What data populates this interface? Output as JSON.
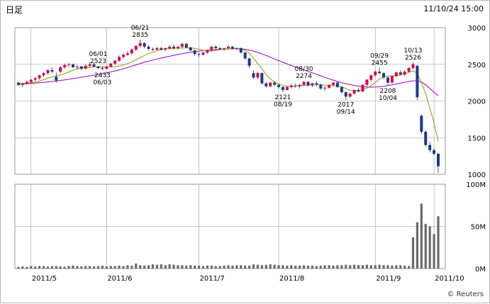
{
  "header": {
    "title": "日足",
    "timestamp": "11/10/24 15:00",
    "copyright": "© Reuters"
  },
  "colors": {
    "up": "#e0004a",
    "down": "#1a3a8a",
    "ma_short": "#8a9a10",
    "ma_long": "#a000c0",
    "volume": "#6a6a6a",
    "grid": "#9a9a9a"
  },
  "chart_data": [
    {
      "type": "candlestick",
      "title": "",
      "y_ticks": [
        "3000",
        "2500",
        "2000",
        "1500",
        "1000"
      ],
      "ylim": [
        1000,
        3000
      ],
      "x_ticks": [
        "2011/5",
        "2011/6",
        "2011/7",
        "2011/8",
        "2011/9",
        "2011/10"
      ],
      "annotations": [
        {
          "date": "06/01",
          "value": "2523"
        },
        {
          "date": "06/03",
          "value": "2433"
        },
        {
          "date": "06/21",
          "value": "2835"
        },
        {
          "date": "08/19",
          "value": "2121"
        },
        {
          "date": "08/30",
          "value": "2274"
        },
        {
          "date": "09/14",
          "value": "2017"
        },
        {
          "date": "09/29",
          "value": "2455"
        },
        {
          "date": "10/04",
          "value": "2208"
        },
        {
          "date": "10/13",
          "value": "2526"
        }
      ],
      "series": [
        {
          "kind": "ohlc",
          "values": [
            [
              2250,
              2260,
              2200,
              2220
            ],
            [
              2220,
              2250,
              2190,
              2240
            ],
            [
              2240,
              2280,
              2220,
              2260
            ],
            [
              2260,
              2300,
              2240,
              2290
            ],
            [
              2290,
              2330,
              2270,
              2310
            ],
            [
              2310,
              2360,
              2290,
              2350
            ],
            [
              2350,
              2400,
              2330,
              2380
            ],
            [
              2380,
              2430,
              2360,
              2420
            ],
            [
              2420,
              2460,
              2380,
              2400
            ],
            [
              2330,
              2390,
              2250,
              2280
            ],
            [
              2400,
              2480,
              2380,
              2460
            ],
            [
              2460,
              2510,
              2440,
              2490
            ],
            [
              2490,
              2520,
              2460,
              2500
            ],
            [
              2500,
              2510,
              2450,
              2460
            ],
            [
              2460,
              2490,
              2430,
              2470
            ],
            [
              2470,
              2480,
              2420,
              2440
            ],
            [
              2440,
              2500,
              2430,
              2480
            ],
            [
              2480,
              2530,
              2450,
              2500
            ],
            [
              2500,
              2523,
              2460,
              2470
            ],
            [
              2470,
              2480,
              2433,
              2450
            ],
            [
              2450,
              2470,
              2420,
              2440
            ],
            [
              2440,
              2480,
              2430,
              2470
            ],
            [
              2470,
              2520,
              2460,
              2510
            ],
            [
              2510,
              2560,
              2490,
              2550
            ],
            [
              2550,
              2620,
              2530,
              2600
            ],
            [
              2600,
              2650,
              2580,
              2630
            ],
            [
              2630,
              2680,
              2610,
              2650
            ],
            [
              2650,
              2720,
              2630,
              2700
            ],
            [
              2700,
              2760,
              2680,
              2750
            ],
            [
              2750,
              2835,
              2730,
              2790
            ],
            [
              2790,
              2800,
              2720,
              2740
            ],
            [
              2740,
              2760,
              2690,
              2710
            ],
            [
              2710,
              2730,
              2680,
              2700
            ],
            [
              2700,
              2740,
              2690,
              2720
            ],
            [
              2720,
              2740,
              2690,
              2700
            ],
            [
              2700,
              2730,
              2680,
              2720
            ],
            [
              2720,
              2760,
              2700,
              2740
            ],
            [
              2740,
              2770,
              2700,
              2720
            ],
            [
              2720,
              2750,
              2700,
              2740
            ],
            [
              2740,
              2790,
              2720,
              2780
            ],
            [
              2780,
              2790,
              2720,
              2730
            ],
            [
              2730,
              2740,
              2680,
              2690
            ],
            [
              2690,
              2700,
              2620,
              2640
            ],
            [
              2640,
              2660,
              2600,
              2630
            ],
            [
              2630,
              2670,
              2620,
              2660
            ],
            [
              2660,
              2700,
              2640,
              2690
            ],
            [
              2690,
              2750,
              2680,
              2740
            ],
            [
              2740,
              2760,
              2700,
              2720
            ],
            [
              2720,
              2740,
              2690,
              2710
            ],
            [
              2710,
              2730,
              2680,
              2720
            ],
            [
              2720,
              2760,
              2700,
              2740
            ],
            [
              2740,
              2750,
              2700,
              2710
            ],
            [
              2710,
              2730,
              2690,
              2720
            ],
            [
              2720,
              2730,
              2650,
              2660
            ],
            [
              2660,
              2670,
              2560,
              2580
            ],
            [
              2580,
              2590,
              2450,
              2480
            ],
            [
              2380,
              2420,
              2300,
              2320
            ],
            [
              2320,
              2400,
              2300,
              2380
            ],
            [
              2380,
              2390,
              2220,
              2240
            ],
            [
              2240,
              2260,
              2180,
              2200
            ],
            [
              2200,
              2260,
              2190,
              2250
            ],
            [
              2250,
              2270,
              2200,
              2220
            ],
            [
              2220,
              2240,
              2170,
              2190
            ],
            [
              2190,
              2200,
              2121,
              2150
            ],
            [
              2150,
              2200,
              2140,
              2190
            ],
            [
              2190,
              2230,
              2170,
              2210
            ],
            [
              2210,
              2240,
              2180,
              2200
            ],
            [
              2200,
              2230,
              2170,
              2220
            ],
            [
              2220,
              2274,
              2200,
              2260
            ],
            [
              2260,
              2270,
              2200,
              2210
            ],
            [
              2210,
              2250,
              2190,
              2240
            ],
            [
              2240,
              2270,
              2200,
              2220
            ],
            [
              2220,
              2240,
              2150,
              2170
            ],
            [
              2170,
              2200,
              2140,
              2180
            ],
            [
              2180,
              2230,
              2170,
              2220
            ],
            [
              2220,
              2260,
              2200,
              2250
            ],
            [
              2250,
              2260,
              2180,
              2190
            ],
            [
              2190,
              2200,
              2100,
              2120
            ],
            [
              2120,
              2130,
              2017,
              2060
            ],
            [
              2060,
              2110,
              2040,
              2100
            ],
            [
              2100,
              2160,
              2090,
              2150
            ],
            [
              2150,
              2180,
              2120,
              2130
            ],
            [
              2130,
              2230,
              2120,
              2220
            ],
            [
              2220,
              2300,
              2200,
              2290
            ],
            [
              2290,
              2360,
              2270,
              2350
            ],
            [
              2350,
              2420,
              2330,
              2400
            ],
            [
              2400,
              2455,
              2360,
              2380
            ],
            [
              2380,
              2390,
              2300,
              2320
            ],
            [
              2320,
              2330,
              2208,
              2250
            ],
            [
              2250,
              2350,
              2240,
              2340
            ],
            [
              2340,
              2400,
              2320,
              2390
            ],
            [
              2390,
              2420,
              2350,
              2360
            ],
            [
              2360,
              2420,
              2340,
              2400
            ],
            [
              2400,
              2460,
              2390,
              2450
            ],
            [
              2450,
              2526,
              2430,
              2500
            ],
            [
              2480,
              2490,
              2010,
              2050
            ],
            [
              1800,
              1820,
              1550,
              1580
            ],
            [
              1580,
              1600,
              1380,
              1400
            ],
            [
              1400,
              1440,
              1300,
              1330
            ],
            [
              1330,
              1350,
              1260,
              1280
            ],
            [
              1280,
              1290,
              1020,
              1110
            ]
          ]
        },
        {
          "name": "",
          "kind": "ma_short",
          "values": [
            2240,
            2238,
            2242,
            2248,
            2258,
            2270,
            2290,
            2310,
            2330,
            2340,
            2355,
            2375,
            2395,
            2420,
            2440,
            2450,
            2455,
            2460,
            2465,
            2465,
            2462,
            2460,
            2462,
            2468,
            2478,
            2492,
            2510,
            2530,
            2560,
            2590,
            2620,
            2645,
            2665,
            2685,
            2700,
            2710,
            2715,
            2718,
            2720,
            2722,
            2725,
            2724,
            2718,
            2705,
            2690,
            2680,
            2680,
            2690,
            2700,
            2705,
            2710,
            2715,
            2718,
            2712,
            2690,
            2650,
            2580,
            2510,
            2440,
            2360,
            2300,
            2260,
            2230,
            2210,
            2200,
            2200,
            2205,
            2208,
            2212,
            2220,
            2225,
            2228,
            2222,
            2215,
            2210,
            2208,
            2205,
            2195,
            2170,
            2145,
            2135,
            2140,
            2155,
            2175,
            2210,
            2250,
            2300,
            2330,
            2340,
            2340,
            2345,
            2355,
            2370,
            2390,
            2410,
            2380,
            2250,
            2100,
            1900,
            1700,
            1450
          ]
        },
        {
          "name": "",
          "kind": "ma_long",
          "values": [
            2230,
            2232,
            2236,
            2240,
            2244,
            2249,
            2254,
            2260,
            2266,
            2272,
            2280,
            2288,
            2296,
            2305,
            2314,
            2324,
            2333,
            2342,
            2352,
            2362,
            2372,
            2384,
            2396,
            2410,
            2424,
            2440,
            2456,
            2474,
            2492,
            2510,
            2528,
            2544,
            2558,
            2572,
            2585,
            2598,
            2610,
            2622,
            2634,
            2645,
            2655,
            2664,
            2672,
            2680,
            2686,
            2692,
            2696,
            2700,
            2704,
            2707,
            2710,
            2712,
            2712,
            2710,
            2705,
            2695,
            2680,
            2662,
            2642,
            2620,
            2597,
            2573,
            2550,
            2528,
            2505,
            2484,
            2464,
            2444,
            2424,
            2404,
            2384,
            2364,
            2344,
            2322,
            2302,
            2284,
            2266,
            2250,
            2236,
            2224,
            2212,
            2202,
            2195,
            2190,
            2188,
            2190,
            2194,
            2200,
            2210,
            2220,
            2232,
            2244,
            2256,
            2266,
            2274,
            2276,
            2260,
            2220,
            2170,
            2120,
            2070
          ]
        }
      ]
    },
    {
      "type": "bar",
      "title": "",
      "y_ticks": [
        "100M",
        "50M",
        "0M"
      ],
      "ylim": [
        0,
        100
      ],
      "series": [
        {
          "name": "",
          "values": [
            2,
            2.5,
            2,
            3,
            2.5,
            3,
            3,
            2.5,
            3,
            3,
            2.5,
            2,
            3,
            3.5,
            3,
            2.5,
            3,
            3,
            2.5,
            3,
            3.5,
            2.5,
            3,
            3,
            3.5,
            3,
            4,
            3.5,
            6,
            4,
            3.5,
            4,
            5,
            4.5,
            5,
            4,
            5,
            4.5,
            4,
            4,
            3.5,
            4,
            3.5,
            3.5,
            3,
            3.5,
            3.5,
            3,
            3,
            3.5,
            4,
            3.5,
            4,
            4,
            3.5,
            3.5,
            5,
            4.5,
            4,
            4.5,
            5,
            4.5,
            4,
            4,
            3.5,
            4,
            3.5,
            3.5,
            4,
            3.5,
            3.5,
            3,
            3.5,
            4,
            4,
            3.5,
            4,
            4,
            4.5,
            4,
            4.5,
            4,
            4,
            4.5,
            4,
            4,
            4.5,
            4,
            4,
            3.5,
            4,
            4,
            3.5,
            3,
            37,
            55,
            77,
            53,
            50,
            41,
            62
          ]
        }
      ]
    }
  ]
}
